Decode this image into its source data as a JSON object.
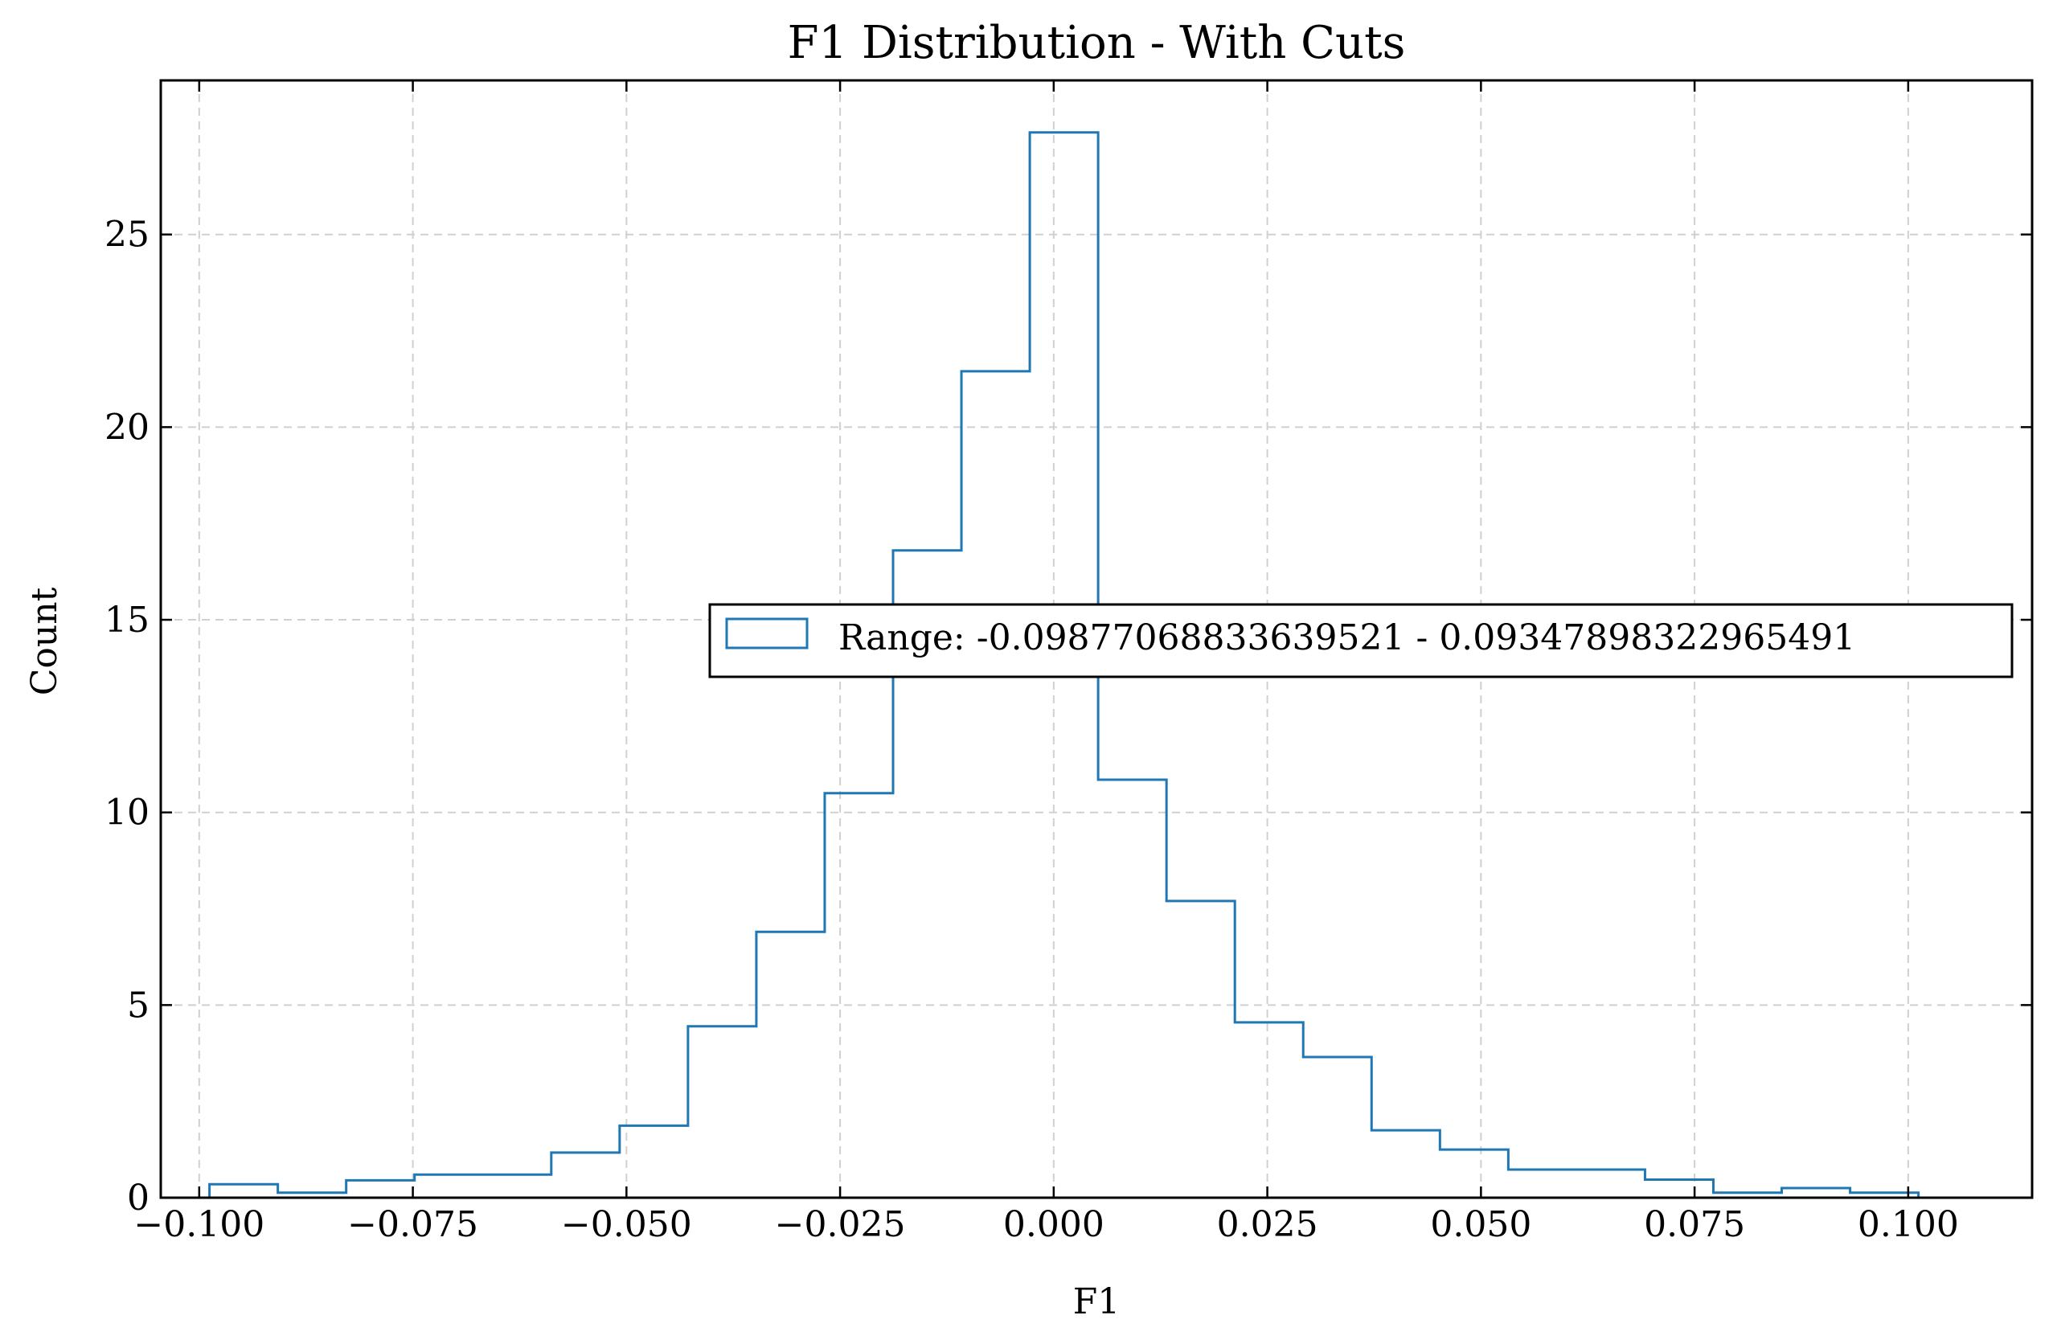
{
  "chart_data": {
    "type": "histogram",
    "title": "F1 Distribution - With Cuts",
    "xlabel": "F1",
    "ylabel": "Count",
    "xlim": [
      -0.1045,
      0.1145
    ],
    "ylim": [
      0,
      29
    ],
    "xticks": [
      -0.1,
      -0.075,
      -0.05,
      -0.025,
      0.0,
      0.025,
      0.05,
      0.075,
      0.1
    ],
    "xtick_labels": [
      "−0.100",
      "−0.075",
      "−0.050",
      "−0.025",
      "0.000",
      "0.025",
      "0.050",
      "0.075",
      "0.100"
    ],
    "yticks": [
      0,
      5,
      10,
      15,
      20,
      25
    ],
    "ytick_labels": [
      "0",
      "5",
      "10",
      "15",
      "20",
      "25"
    ],
    "grid": true,
    "legend_position": "center-right",
    "series": [
      {
        "name": "Range: -0.09877068833639521 - 0.09347898322965491",
        "color": "#1f77b4",
        "bin_edges": [
          -0.0988,
          -0.0908,
          -0.0828,
          -0.0748,
          -0.0668,
          -0.0588,
          -0.0508,
          -0.0428,
          -0.0348,
          -0.0268,
          -0.0188,
          -0.0108,
          -0.0028,
          0.0052,
          0.0132,
          0.0212,
          0.0292,
          0.0372,
          0.0452,
          0.0532,
          0.0612,
          0.0692,
          0.0772,
          0.0852,
          0.0932,
          0.1012
        ],
        "counts": [
          0.35,
          0.13,
          0.45,
          0.6,
          0.6,
          1.17,
          1.87,
          4.45,
          6.9,
          10.5,
          16.8,
          21.45,
          27.65,
          10.85,
          7.7,
          4.55,
          3.65,
          1.75,
          1.25,
          0.73,
          0.73,
          0.47,
          0.13,
          0.25,
          0.13
        ]
      }
    ]
  }
}
